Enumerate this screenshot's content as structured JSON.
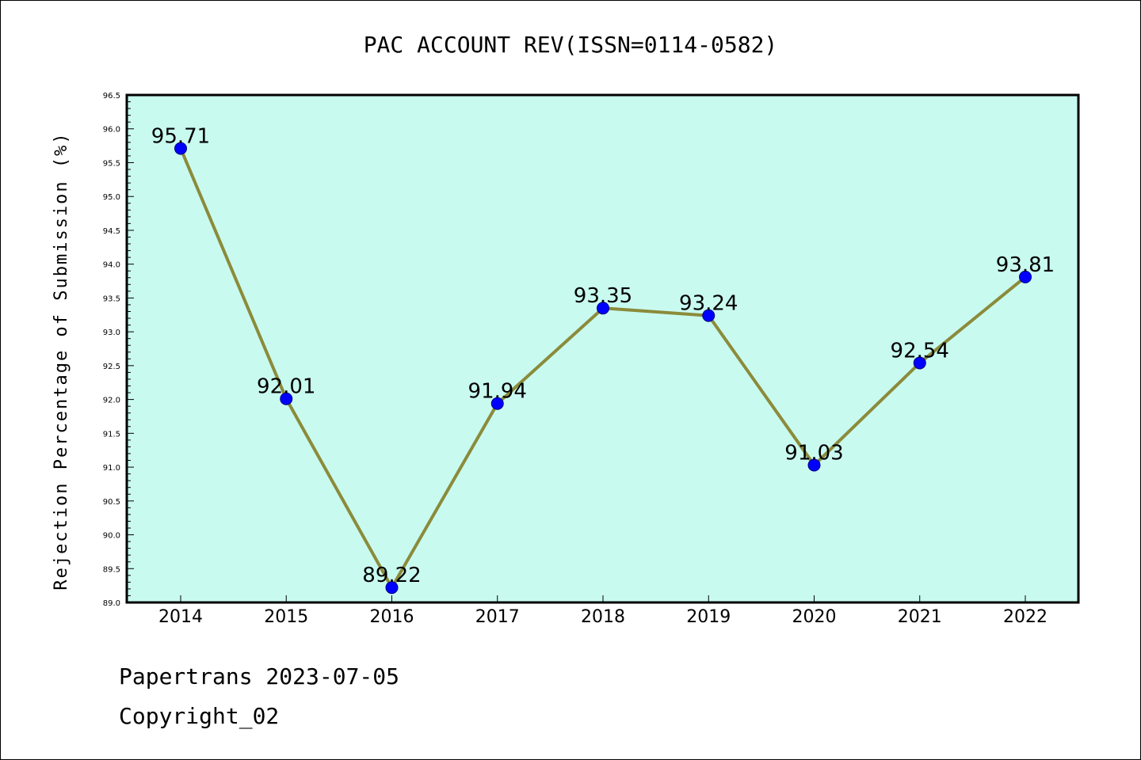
{
  "chart_data": {
    "type": "line",
    "title": "PAC ACCOUNT REV(ISSN=0114-0582)",
    "xlabel": "",
    "ylabel": "Rejection Percentage of Submission (%)",
    "categories": [
      "2014",
      "2015",
      "2016",
      "2017",
      "2018",
      "2019",
      "2020",
      "2021",
      "2022"
    ],
    "series": [
      {
        "values": [
          95.71,
          92.01,
          89.22,
          91.94,
          93.35,
          93.24,
          91.03,
          92.54,
          93.81
        ],
        "labels": [
          "95.71",
          "92.01",
          "89.22",
          "91.94",
          "93.35",
          "93.24",
          "91.03",
          "92.54",
          "93.81"
        ]
      }
    ],
    "ylim": [
      89.0,
      96.5
    ],
    "yticks": [
      "89.0",
      "89.5",
      "90.0",
      "90.5",
      "91.0",
      "91.5",
      "92.0",
      "92.5",
      "93.0",
      "93.5",
      "94.0",
      "94.5",
      "95.0",
      "95.5",
      "96.0",
      "96.5"
    ],
    "grid": false,
    "colors": {
      "plot_background": "#c8faf0",
      "line": "#8b8b3a",
      "marker": "#0000ff",
      "marker_edge": "#000080"
    }
  },
  "footer": {
    "line1": "Papertrans 2023-07-05",
    "line2": "Copyright_02"
  }
}
